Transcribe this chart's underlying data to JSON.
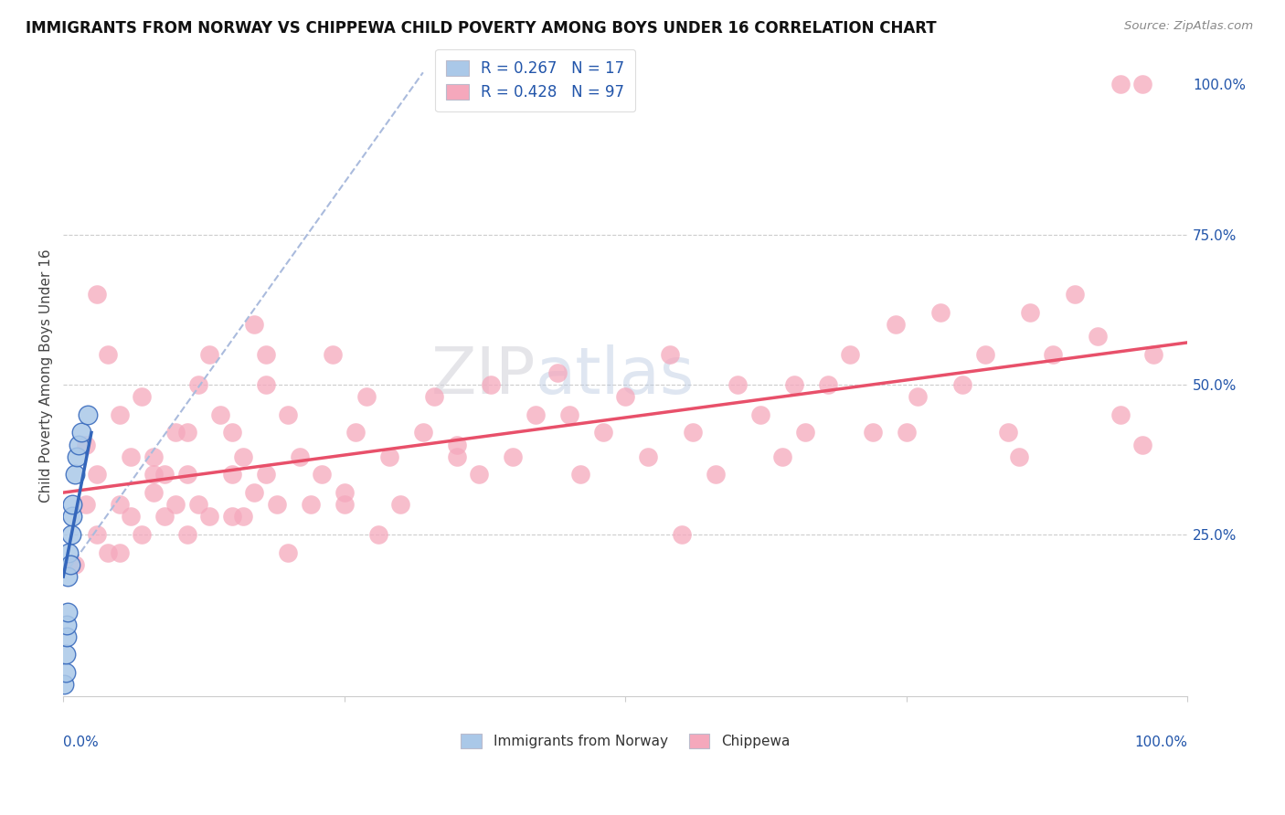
{
  "title": "IMMIGRANTS FROM NORWAY VS CHIPPEWA CHILD POVERTY AMONG BOYS UNDER 16 CORRELATION CHART",
  "source": "Source: ZipAtlas.com",
  "ylabel": "Child Poverty Among Boys Under 16",
  "xlim": [
    0,
    1
  ],
  "ylim": [
    -0.02,
    1.05
  ],
  "legend_r_norway": "R = 0.267",
  "legend_n_norway": "N = 17",
  "legend_r_chippewa": "R = 0.428",
  "legend_n_chippewa": "N = 97",
  "legend_label_norway": "Immigrants from Norway",
  "legend_label_chippewa": "Chippewa",
  "norway_color": "#aac8e8",
  "chippewa_color": "#f5a8bc",
  "norway_line_color": "#3366bb",
  "chippewa_line_color": "#e8506a",
  "dashed_line_color": "#aabbdd",
  "background_color": "#ffffff",
  "norway_x": [
    0.001,
    0.002,
    0.002,
    0.003,
    0.003,
    0.004,
    0.004,
    0.005,
    0.006,
    0.007,
    0.008,
    0.008,
    0.01,
    0.012,
    0.014,
    0.016,
    0.022
  ],
  "norway_y": [
    0.0,
    0.02,
    0.05,
    0.08,
    0.1,
    0.12,
    0.18,
    0.22,
    0.2,
    0.25,
    0.28,
    0.3,
    0.35,
    0.38,
    0.4,
    0.42,
    0.45
  ],
  "chippewa_x": [
    0.01,
    0.02,
    0.02,
    0.03,
    0.03,
    0.04,
    0.04,
    0.05,
    0.05,
    0.06,
    0.06,
    0.07,
    0.07,
    0.08,
    0.08,
    0.09,
    0.09,
    0.1,
    0.1,
    0.11,
    0.11,
    0.12,
    0.12,
    0.13,
    0.13,
    0.14,
    0.15,
    0.15,
    0.16,
    0.16,
    0.17,
    0.17,
    0.18,
    0.18,
    0.19,
    0.2,
    0.2,
    0.21,
    0.22,
    0.23,
    0.24,
    0.25,
    0.26,
    0.27,
    0.28,
    0.29,
    0.3,
    0.32,
    0.33,
    0.35,
    0.37,
    0.38,
    0.4,
    0.42,
    0.44,
    0.46,
    0.48,
    0.5,
    0.52,
    0.54,
    0.56,
    0.58,
    0.6,
    0.62,
    0.64,
    0.66,
    0.68,
    0.7,
    0.72,
    0.74,
    0.76,
    0.78,
    0.8,
    0.82,
    0.84,
    0.86,
    0.88,
    0.9,
    0.92,
    0.94,
    0.94,
    0.96,
    0.96,
    0.97,
    0.03,
    0.05,
    0.08,
    0.11,
    0.15,
    0.18,
    0.25,
    0.35,
    0.45,
    0.55,
    0.65,
    0.75,
    0.85
  ],
  "chippewa_y": [
    0.2,
    0.3,
    0.4,
    0.25,
    0.35,
    0.55,
    0.22,
    0.3,
    0.45,
    0.28,
    0.38,
    0.25,
    0.48,
    0.32,
    0.38,
    0.28,
    0.35,
    0.3,
    0.42,
    0.35,
    0.25,
    0.5,
    0.3,
    0.55,
    0.28,
    0.45,
    0.35,
    0.42,
    0.28,
    0.38,
    0.6,
    0.32,
    0.5,
    0.35,
    0.3,
    0.22,
    0.45,
    0.38,
    0.3,
    0.35,
    0.55,
    0.32,
    0.42,
    0.48,
    0.25,
    0.38,
    0.3,
    0.42,
    0.48,
    0.4,
    0.35,
    0.5,
    0.38,
    0.45,
    0.52,
    0.35,
    0.42,
    0.48,
    0.38,
    0.55,
    0.42,
    0.35,
    0.5,
    0.45,
    0.38,
    0.42,
    0.5,
    0.55,
    0.42,
    0.6,
    0.48,
    0.62,
    0.5,
    0.55,
    0.42,
    0.62,
    0.55,
    0.65,
    0.58,
    0.45,
    1.0,
    1.0,
    0.4,
    0.55,
    0.65,
    0.22,
    0.35,
    0.42,
    0.28,
    0.55,
    0.3,
    0.38,
    0.45,
    0.25,
    0.5,
    0.42,
    0.38
  ],
  "norway_line_x": [
    0.0,
    0.025
  ],
  "norway_line_y": [
    0.18,
    0.42
  ],
  "dashed_line_x": [
    0.0,
    0.32
  ],
  "dashed_line_y": [
    0.18,
    1.02
  ],
  "chippewa_line_x": [
    0.0,
    1.0
  ],
  "chippewa_line_y": [
    0.32,
    0.57
  ]
}
